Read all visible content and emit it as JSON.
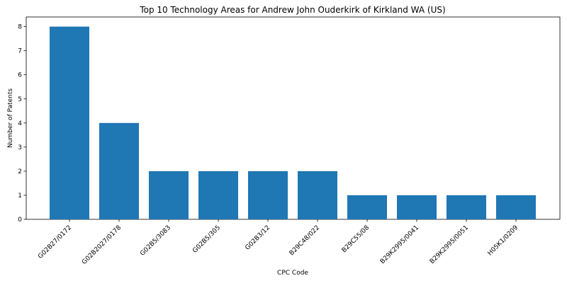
{
  "chart_data": {
    "type": "bar",
    "title": "Top 10 Technology Areas for Andrew John Ouderkirk of Kirkland WA (US)",
    "xlabel": "CPC Code",
    "ylabel": "Number of Patents",
    "categories": [
      "G02B27/0172",
      "G02B2027/0178",
      "G02B5/3083",
      "G02B5/305",
      "G02B3/12",
      "B29C48/022",
      "B29C55/08",
      "B29K2995/0041",
      "B29K2995/0051",
      "H05K1/0209"
    ],
    "values": [
      8,
      4,
      2,
      2,
      2,
      2,
      1,
      1,
      1,
      1
    ],
    "ylim": [
      0,
      8.4
    ],
    "yticks": [
      0,
      1,
      2,
      3,
      4,
      5,
      6,
      7,
      8
    ],
    "bar_color": "#1f77b4",
    "grid": false,
    "legend": "none"
  }
}
